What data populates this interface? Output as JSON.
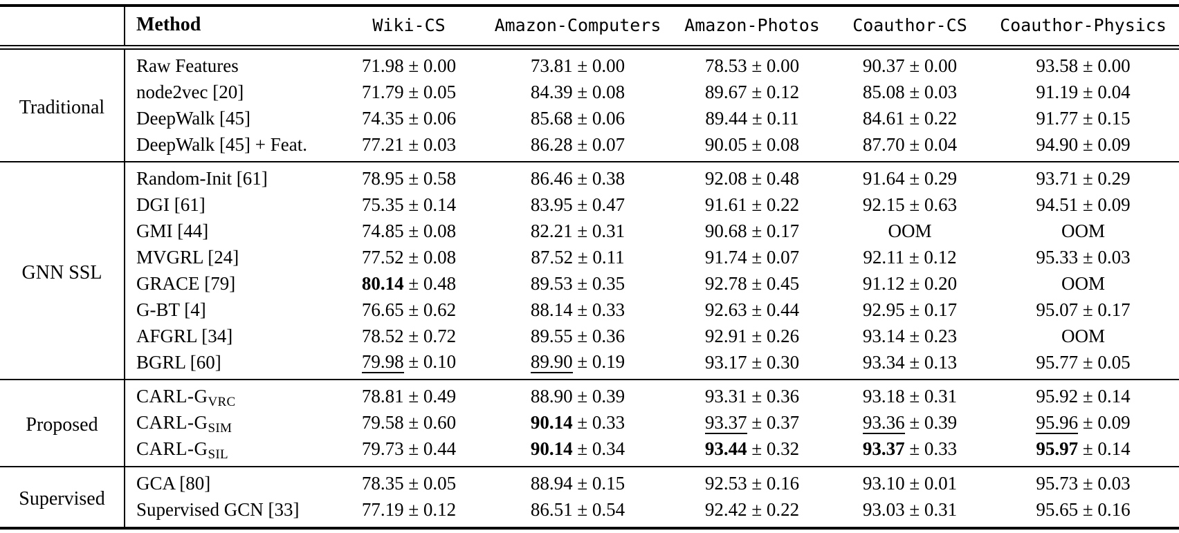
{
  "table": {
    "corner": "",
    "method_header": "Method",
    "pm": "±",
    "oom": "OOM",
    "datasets": [
      "Wiki-CS",
      "Amazon-Computers",
      "Amazon-Photos",
      "Coauthor-CS",
      "Coauthor-Physics"
    ],
    "sections": [
      {
        "group": "Traditional",
        "rows": [
          {
            "method": "Raw Features",
            "cells": [
              {
                "m": "71.98",
                "s": "0.00"
              },
              {
                "m": "73.81",
                "s": "0.00"
              },
              {
                "m": "78.53",
                "s": "0.00"
              },
              {
                "m": "90.37",
                "s": "0.00"
              },
              {
                "m": "93.58",
                "s": "0.00"
              }
            ]
          },
          {
            "method": "node2vec [20]",
            "cells": [
              {
                "m": "71.79",
                "s": "0.05"
              },
              {
                "m": "84.39",
                "s": "0.08"
              },
              {
                "m": "89.67",
                "s": "0.12"
              },
              {
                "m": "85.08",
                "s": "0.03"
              },
              {
                "m": "91.19",
                "s": "0.04"
              }
            ]
          },
          {
            "method": "DeepWalk [45]",
            "cells": [
              {
                "m": "74.35",
                "s": "0.06"
              },
              {
                "m": "85.68",
                "s": "0.06"
              },
              {
                "m": "89.44",
                "s": "0.11"
              },
              {
                "m": "84.61",
                "s": "0.22"
              },
              {
                "m": "91.77",
                "s": "0.15"
              }
            ]
          },
          {
            "method": "DeepWalk [45] + Feat.",
            "cells": [
              {
                "m": "77.21",
                "s": "0.03"
              },
              {
                "m": "86.28",
                "s": "0.07"
              },
              {
                "m": "90.05",
                "s": "0.08"
              },
              {
                "m": "87.70",
                "s": "0.04"
              },
              {
                "m": "94.90",
                "s": "0.09"
              }
            ]
          }
        ]
      },
      {
        "group": "GNN SSL",
        "rows": [
          {
            "method": "Random-Init [61]",
            "cells": [
              {
                "m": "78.95",
                "s": "0.58"
              },
              {
                "m": "86.46",
                "s": "0.38"
              },
              {
                "m": "92.08",
                "s": "0.48"
              },
              {
                "m": "91.64",
                "s": "0.29"
              },
              {
                "m": "93.71",
                "s": "0.29"
              }
            ]
          },
          {
            "method": "DGI [61]",
            "cells": [
              {
                "m": "75.35",
                "s": "0.14"
              },
              {
                "m": "83.95",
                "s": "0.47"
              },
              {
                "m": "91.61",
                "s": "0.22"
              },
              {
                "m": "92.15",
                "s": "0.63"
              },
              {
                "m": "94.51",
                "s": "0.09"
              }
            ]
          },
          {
            "method": "GMI [44]",
            "cells": [
              {
                "m": "74.85",
                "s": "0.08"
              },
              {
                "m": "82.21",
                "s": "0.31"
              },
              {
                "m": "90.68",
                "s": "0.17"
              },
              {
                "text": "OOM"
              },
              {
                "text": "OOM"
              }
            ]
          },
          {
            "method": "MVGRL [24]",
            "cells": [
              {
                "m": "77.52",
                "s": "0.08"
              },
              {
                "m": "87.52",
                "s": "0.11"
              },
              {
                "m": "91.74",
                "s": "0.07"
              },
              {
                "m": "92.11",
                "s": "0.12"
              },
              {
                "m": "95.33",
                "s": "0.03"
              }
            ]
          },
          {
            "method": "GRACE [79]",
            "cells": [
              {
                "m": "80.14",
                "s": "0.48",
                "f": "b"
              },
              {
                "m": "89.53",
                "s": "0.35"
              },
              {
                "m": "92.78",
                "s": "0.45"
              },
              {
                "m": "91.12",
                "s": "0.20"
              },
              {
                "text": "OOM"
              }
            ]
          },
          {
            "method": "G-BT [4]",
            "cells": [
              {
                "m": "76.65",
                "s": "0.62"
              },
              {
                "m": "88.14",
                "s": "0.33"
              },
              {
                "m": "92.63",
                "s": "0.44"
              },
              {
                "m": "92.95",
                "s": "0.17"
              },
              {
                "m": "95.07",
                "s": "0.17"
              }
            ]
          },
          {
            "method": "AFGRL [34]",
            "cells": [
              {
                "m": "78.52",
                "s": "0.72"
              },
              {
                "m": "89.55",
                "s": "0.36"
              },
              {
                "m": "92.91",
                "s": "0.26"
              },
              {
                "m": "93.14",
                "s": "0.23"
              },
              {
                "text": "OOM"
              }
            ]
          },
          {
            "method": "BGRL [60]",
            "cells": [
              {
                "m": "79.98",
                "s": "0.10",
                "f": "u"
              },
              {
                "m": "89.90",
                "s": "0.19",
                "f": "u"
              },
              {
                "m": "93.17",
                "s": "0.30"
              },
              {
                "m": "93.34",
                "s": "0.13"
              },
              {
                "m": "95.77",
                "s": "0.05"
              }
            ]
          }
        ]
      },
      {
        "group": "Proposed",
        "rows": [
          {
            "method": "CARL-G",
            "sub": "VRC",
            "cells": [
              {
                "m": "78.81",
                "s": "0.49"
              },
              {
                "m": "88.90",
                "s": "0.39"
              },
              {
                "m": "93.31",
                "s": "0.36"
              },
              {
                "m": "93.18",
                "s": "0.31"
              },
              {
                "m": "95.92",
                "s": "0.14"
              }
            ]
          },
          {
            "method": "CARL-G",
            "sub": "SIM",
            "cells": [
              {
                "m": "79.58",
                "s": "0.60"
              },
              {
                "m": "90.14",
                "s": "0.33",
                "f": "b"
              },
              {
                "m": "93.37",
                "s": "0.37",
                "f": "u"
              },
              {
                "m": "93.36",
                "s": "0.39",
                "f": "u"
              },
              {
                "m": "95.96",
                "s": "0.09",
                "f": "u"
              }
            ]
          },
          {
            "method": "CARL-G",
            "sub": "SIL",
            "cells": [
              {
                "m": "79.73",
                "s": "0.44"
              },
              {
                "m": "90.14",
                "s": "0.34",
                "f": "b"
              },
              {
                "m": "93.44",
                "s": "0.32",
                "f": "b"
              },
              {
                "m": "93.37",
                "s": "0.33",
                "f": "b"
              },
              {
                "m": "95.97",
                "s": "0.14",
                "f": "b"
              }
            ]
          }
        ]
      },
      {
        "group": "Supervised",
        "rows": [
          {
            "method": "GCA [80]",
            "cells": [
              {
                "m": "78.35",
                "s": "0.05"
              },
              {
                "m": "88.94",
                "s": "0.15"
              },
              {
                "m": "92.53",
                "s": "0.16"
              },
              {
                "m": "93.10",
                "s": "0.01"
              },
              {
                "m": "95.73",
                "s": "0.03"
              }
            ]
          },
          {
            "method": "Supervised GCN [33]",
            "cells": [
              {
                "m": "77.19",
                "s": "0.12"
              },
              {
                "m": "86.51",
                "s": "0.54"
              },
              {
                "m": "92.42",
                "s": "0.22"
              },
              {
                "m": "93.03",
                "s": "0.31"
              },
              {
                "m": "95.65",
                "s": "0.16"
              }
            ]
          }
        ]
      }
    ]
  }
}
